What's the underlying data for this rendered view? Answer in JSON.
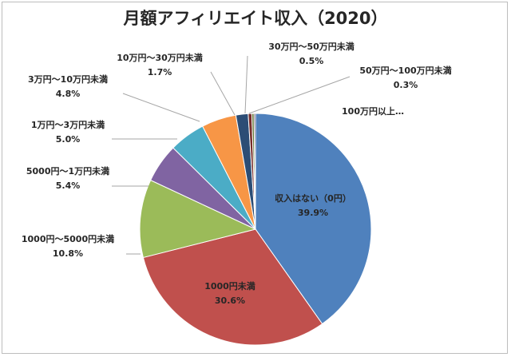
{
  "chart_data": {
    "type": "pie",
    "title": "月額アフィリエイト収入（2020）",
    "slices": [
      {
        "label": "収入はない（0円）",
        "pct_label": "39.9%",
        "value": 39.9,
        "color": "#4f81bd"
      },
      {
        "label": "1000円未満",
        "pct_label": "30.6%",
        "value": 30.6,
        "color": "#c0504d"
      },
      {
        "label": "1000円～5000円未満",
        "pct_label": "10.8%",
        "value": 10.8,
        "color": "#9bbb59"
      },
      {
        "label": "5000円～1万円未満",
        "pct_label": "5.4%",
        "value": 5.4,
        "color": "#8064a2"
      },
      {
        "label": "1万円～3万円未満",
        "pct_label": "5.0%",
        "value": 5.0,
        "color": "#4bacc6"
      },
      {
        "label": "3万円～10万円未満",
        "pct_label": "4.8%",
        "value": 4.8,
        "color": "#f79646"
      },
      {
        "label": "10万円～30万円未満",
        "pct_label": "1.7%",
        "value": 1.7,
        "color": "#2c4d75"
      },
      {
        "label": "30万円～50万円未満",
        "pct_label": "0.5%",
        "value": 0.5,
        "color": "#772c2a"
      },
      {
        "label": "50万円～100万円未満",
        "pct_label": "0.3%",
        "value": 0.3,
        "color": "#5f7530"
      },
      {
        "label": "100万円以上…",
        "pct_label": "",
        "value": 0.2,
        "color": "#4d3b62"
      }
    ]
  }
}
